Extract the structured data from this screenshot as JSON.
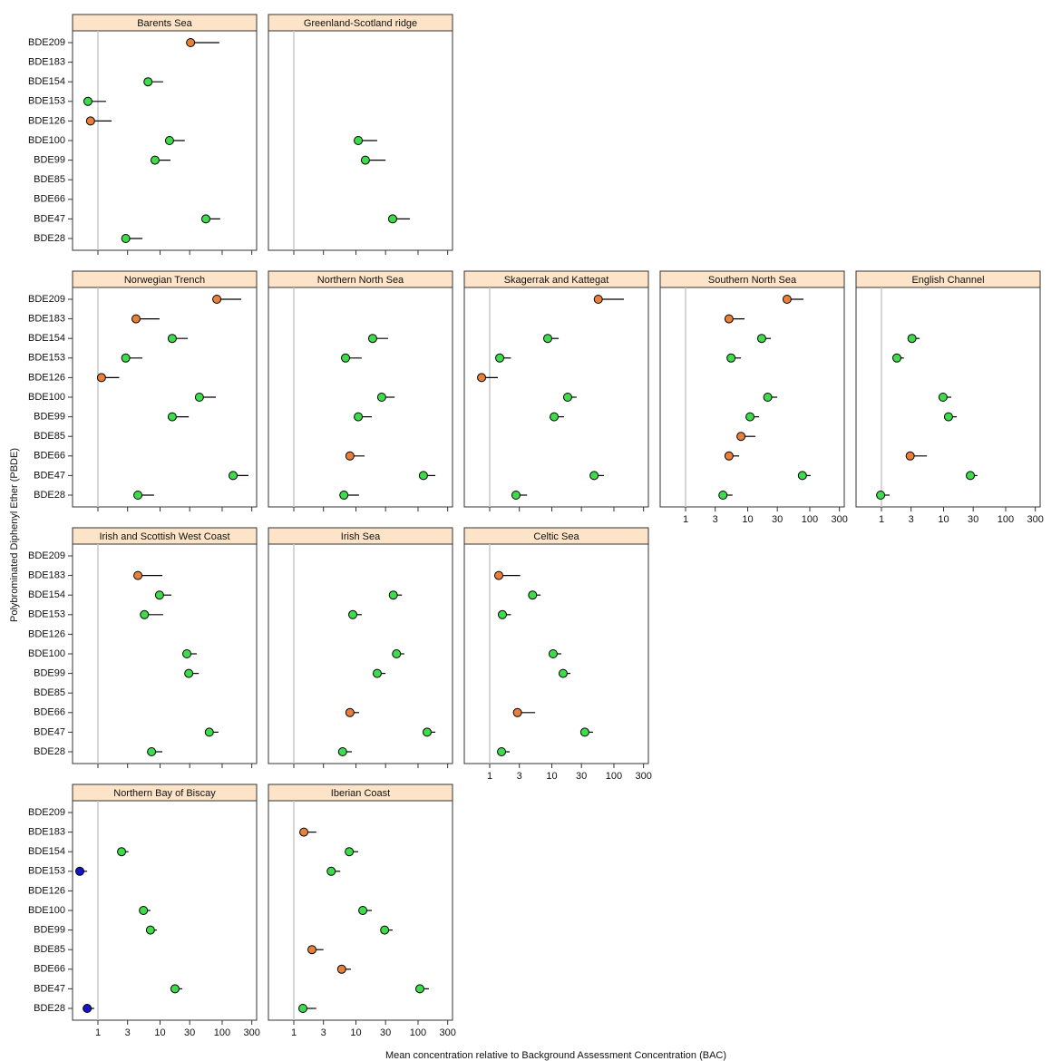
{
  "xlabel": "Mean concentration relative to Background Assessment Concentration (BAC)",
  "ylabel": "Polybrominated Diphenyl Ether (PBDE)",
  "chart_data": [
    {
      "type": "dot",
      "title": "Barents Sea",
      "categories": [
        "BDE209",
        "BDE183",
        "BDE154",
        "BDE153",
        "BDE126",
        "BDE100",
        "BDE99",
        "BDE85",
        "BDE66",
        "BDE47",
        "BDE28"
      ],
      "values": [
        31,
        null,
        6.4,
        0.69,
        0.76,
        14.2,
        8.3,
        null,
        null,
        54.6,
        2.8
      ],
      "upper": [
        90,
        null,
        11.2,
        1.35,
        1.66,
        25,
        14.7,
        null,
        null,
        93,
        5.2
      ],
      "point_colors": [
        "#e8803a",
        null,
        "#3ddc4a",
        "#3ddc4a",
        "#e8803a",
        "#3ddc4a",
        "#3ddc4a",
        null,
        null,
        "#3ddc4a",
        "#3ddc4a"
      ],
      "xlim": [
        0.39,
        359
      ],
      "xticks": [
        1,
        3,
        10,
        30,
        100,
        300
      ],
      "log_x": true,
      "reference_line": 1
    },
    {
      "type": "dot",
      "title": "Greenland-Scotland ridge",
      "categories": [
        "BDE209",
        "BDE183",
        "BDE154",
        "BDE153",
        "BDE126",
        "BDE100",
        "BDE99",
        "BDE85",
        "BDE66",
        "BDE47",
        "BDE28"
      ],
      "values": [
        null,
        null,
        null,
        null,
        null,
        10.9,
        14.2,
        null,
        null,
        39,
        null
      ],
      "upper": [
        null,
        null,
        null,
        null,
        null,
        22,
        30,
        null,
        null,
        74,
        null
      ],
      "point_colors": [
        null,
        null,
        null,
        null,
        null,
        "#3ddc4a",
        "#3ddc4a",
        null,
        null,
        "#3ddc4a",
        null
      ],
      "xlim": [
        0.39,
        359
      ],
      "xticks": [
        1,
        3,
        10,
        30,
        100,
        300
      ],
      "log_x": true,
      "reference_line": 1
    },
    {
      "type": "dot",
      "title": "Norwegian Trench",
      "categories": [
        "BDE209",
        "BDE183",
        "BDE154",
        "BDE153",
        "BDE126",
        "BDE100",
        "BDE99",
        "BDE85",
        "BDE66",
        "BDE47",
        "BDE28"
      ],
      "values": [
        82,
        4.1,
        15.7,
        2.8,
        1.14,
        43,
        15.7,
        null,
        null,
        150,
        4.4
      ],
      "upper": [
        203,
        9.8,
        28,
        5.2,
        2.2,
        79,
        29,
        null,
        null,
        265,
        8
      ],
      "point_colors": [
        "#e8803a",
        "#e8803a",
        "#3ddc4a",
        "#3ddc4a",
        "#e8803a",
        "#3ddc4a",
        "#3ddc4a",
        null,
        null,
        "#3ddc4a",
        "#3ddc4a"
      ],
      "xlim": [
        0.39,
        359
      ],
      "xticks": [
        1,
        3,
        10,
        30,
        100,
        300
      ],
      "log_x": true,
      "reference_line": 1
    },
    {
      "type": "dot",
      "title": "Northern North Sea",
      "categories": [
        "BDE209",
        "BDE183",
        "BDE154",
        "BDE153",
        "BDE126",
        "BDE100",
        "BDE99",
        "BDE85",
        "BDE66",
        "BDE47",
        "BDE28"
      ],
      "values": [
        null,
        null,
        18.6,
        6.8,
        null,
        26,
        10.9,
        null,
        8,
        122,
        6.4
      ],
      "upper": [
        null,
        null,
        33,
        12.4,
        null,
        42,
        18,
        null,
        13.8,
        190,
        11.2
      ],
      "point_colors": [
        null,
        null,
        "#3ddc4a",
        "#3ddc4a",
        null,
        "#3ddc4a",
        "#3ddc4a",
        null,
        "#e8803a",
        "#3ddc4a",
        "#3ddc4a"
      ],
      "xlim": [
        0.39,
        359
      ],
      "xticks": [
        1,
        3,
        10,
        30,
        100,
        300
      ],
      "log_x": true,
      "reference_line": 1
    },
    {
      "type": "dot",
      "title": "Skagerrak and Kattegat",
      "categories": [
        "BDE209",
        "BDE183",
        "BDE154",
        "BDE153",
        "BDE126",
        "BDE100",
        "BDE99",
        "BDE85",
        "BDE66",
        "BDE47",
        "BDE28"
      ],
      "values": [
        56,
        null,
        8.6,
        1.45,
        0.74,
        18,
        10.9,
        null,
        null,
        48,
        2.65
      ],
      "upper": [
        145,
        null,
        12.9,
        2.2,
        1.35,
        25,
        15.7,
        null,
        null,
        69,
        4
      ],
      "point_colors": [
        "#e8803a",
        null,
        "#3ddc4a",
        "#3ddc4a",
        "#e8803a",
        "#3ddc4a",
        "#3ddc4a",
        null,
        null,
        "#3ddc4a",
        "#3ddc4a"
      ],
      "xlim": [
        0.39,
        359
      ],
      "xticks": [
        1,
        3,
        10,
        30,
        100,
        300
      ],
      "log_x": true,
      "reference_line": 1
    },
    {
      "type": "dot",
      "title": "Southern North Sea",
      "categories": [
        "BDE209",
        "BDE183",
        "BDE154",
        "BDE153",
        "BDE126",
        "BDE100",
        "BDE99",
        "BDE85",
        "BDE66",
        "BDE47",
        "BDE28"
      ],
      "values": [
        43,
        5,
        16.8,
        5.4,
        null,
        21,
        10.9,
        7.8,
        5,
        76,
        4
      ],
      "upper": [
        79,
        8.9,
        23.6,
        7.8,
        null,
        30,
        15.2,
        13.3,
        7.3,
        103,
        5.7
      ],
      "point_colors": [
        "#e8803a",
        "#e8803a",
        "#3ddc4a",
        "#3ddc4a",
        null,
        "#3ddc4a",
        "#3ddc4a",
        "#e8803a",
        "#e8803a",
        "#3ddc4a",
        "#3ddc4a"
      ],
      "xlim": [
        0.39,
        359
      ],
      "xticks": [
        1,
        3,
        10,
        30,
        100,
        300
      ],
      "log_x": true,
      "reference_line": 1
    },
    {
      "type": "dot",
      "title": "English Channel",
      "categories": [
        "BDE209",
        "BDE183",
        "BDE154",
        "BDE153",
        "BDE126",
        "BDE100",
        "BDE99",
        "BDE85",
        "BDE66",
        "BDE47",
        "BDE28"
      ],
      "values": [
        null,
        null,
        3.1,
        1.77,
        null,
        9.8,
        12,
        null,
        2.9,
        27,
        0.97
      ],
      "upper": [
        null,
        null,
        4.1,
        2.3,
        null,
        13.3,
        16.3,
        null,
        5.4,
        35,
        1.35
      ],
      "point_colors": [
        null,
        null,
        "#3ddc4a",
        "#3ddc4a",
        null,
        "#3ddc4a",
        "#3ddc4a",
        null,
        "#e8803a",
        "#3ddc4a",
        "#3ddc4a"
      ],
      "xlim": [
        0.39,
        359
      ],
      "xticks": [
        1,
        3,
        10,
        30,
        100,
        300
      ],
      "log_x": true,
      "reference_line": 1
    },
    {
      "type": "dot",
      "title": "Irish and Scottish West Coast",
      "categories": [
        "BDE209",
        "BDE183",
        "BDE154",
        "BDE153",
        "BDE126",
        "BDE100",
        "BDE99",
        "BDE85",
        "BDE66",
        "BDE47",
        "BDE28"
      ],
      "values": [
        null,
        4.4,
        9.8,
        5.6,
        null,
        27,
        29,
        null,
        null,
        62,
        7.3
      ],
      "upper": [
        null,
        10.9,
        15.2,
        11.2,
        null,
        39,
        42,
        null,
        null,
        87,
        10.9
      ],
      "point_colors": [
        null,
        "#e8803a",
        "#3ddc4a",
        "#3ddc4a",
        null,
        "#3ddc4a",
        "#3ddc4a",
        null,
        null,
        "#3ddc4a",
        "#3ddc4a"
      ],
      "xlim": [
        0.39,
        359
      ],
      "xticks": [
        1,
        3,
        10,
        30,
        100,
        300
      ],
      "log_x": true,
      "reference_line": 1
    },
    {
      "type": "dot",
      "title": "Irish Sea",
      "categories": [
        "BDE209",
        "BDE183",
        "BDE154",
        "BDE153",
        "BDE126",
        "BDE100",
        "BDE99",
        "BDE85",
        "BDE66",
        "BDE47",
        "BDE28"
      ],
      "values": [
        null,
        null,
        40,
        8.9,
        null,
        45,
        22,
        null,
        8,
        140,
        6.1
      ],
      "upper": [
        null,
        null,
        55,
        12.4,
        null,
        60,
        30,
        null,
        11.2,
        190,
        8.6
      ],
      "point_colors": [
        null,
        null,
        "#3ddc4a",
        "#3ddc4a",
        null,
        "#3ddc4a",
        "#3ddc4a",
        null,
        "#e8803a",
        "#3ddc4a",
        "#3ddc4a"
      ],
      "xlim": [
        0.39,
        359
      ],
      "xticks": [
        1,
        3,
        10,
        30,
        100,
        300
      ],
      "log_x": true,
      "reference_line": 1
    },
    {
      "type": "dot",
      "title": "Celtic Sea",
      "categories": [
        "BDE209",
        "BDE183",
        "BDE154",
        "BDE153",
        "BDE126",
        "BDE100",
        "BDE99",
        "BDE85",
        "BDE66",
        "BDE47",
        "BDE28"
      ],
      "values": [
        null,
        1.4,
        4.9,
        1.6,
        null,
        10.5,
        15.2,
        null,
        2.8,
        34,
        1.55
      ],
      "upper": [
        null,
        3.1,
        6.6,
        2.2,
        null,
        14.2,
        19.9,
        null,
        5.4,
        46,
        2.1
      ],
      "point_colors": [
        null,
        "#e8803a",
        "#3ddc4a",
        "#3ddc4a",
        null,
        "#3ddc4a",
        "#3ddc4a",
        null,
        "#e8803a",
        "#3ddc4a",
        "#3ddc4a"
      ],
      "xlim": [
        0.39,
        359
      ],
      "xticks": [
        1,
        3,
        10,
        30,
        100,
        300
      ],
      "log_x": true,
      "reference_line": 1
    },
    {
      "type": "dot",
      "title": "Northern Bay of Biscay",
      "categories": [
        "BDE209",
        "BDE183",
        "BDE154",
        "BDE153",
        "BDE126",
        "BDE100",
        "BDE99",
        "BDE85",
        "BDE66",
        "BDE47",
        "BDE28"
      ],
      "values": [
        null,
        null,
        2.4,
        0.51,
        null,
        5.4,
        7,
        null,
        null,
        17.4,
        0.67
      ],
      "upper": [
        null,
        null,
        3.1,
        0.67,
        null,
        7,
        8.9,
        null,
        null,
        22.8,
        0.87
      ],
      "point_colors": [
        null,
        null,
        "#3ddc4a",
        "#1414c8",
        null,
        "#3ddc4a",
        "#3ddc4a",
        null,
        null,
        "#3ddc4a",
        "#1414c8"
      ],
      "xlim": [
        0.39,
        359
      ],
      "xticks": [
        1,
        3,
        10,
        30,
        100,
        300
      ],
      "log_x": true,
      "reference_line": 1
    },
    {
      "type": "dot",
      "title": "Iberian Coast",
      "categories": [
        "BDE209",
        "BDE183",
        "BDE154",
        "BDE153",
        "BDE126",
        "BDE100",
        "BDE99",
        "BDE85",
        "BDE66",
        "BDE47",
        "BDE28"
      ],
      "values": [
        null,
        1.45,
        7.8,
        4,
        null,
        12.9,
        29,
        1.96,
        5.9,
        107,
        1.4
      ],
      "upper": [
        null,
        2.3,
        10.9,
        5.6,
        null,
        18,
        39,
        3,
        8.3,
        150,
        2.3
      ],
      "point_colors": [
        null,
        "#e8803a",
        "#3ddc4a",
        "#3ddc4a",
        null,
        "#3ddc4a",
        "#3ddc4a",
        "#e8803a",
        "#e8803a",
        "#3ddc4a",
        "#3ddc4a"
      ],
      "xlim": [
        0.39,
        359
      ],
      "xticks": [
        1,
        3,
        10,
        30,
        100,
        300
      ],
      "log_x": true,
      "reference_line": 1
    }
  ]
}
